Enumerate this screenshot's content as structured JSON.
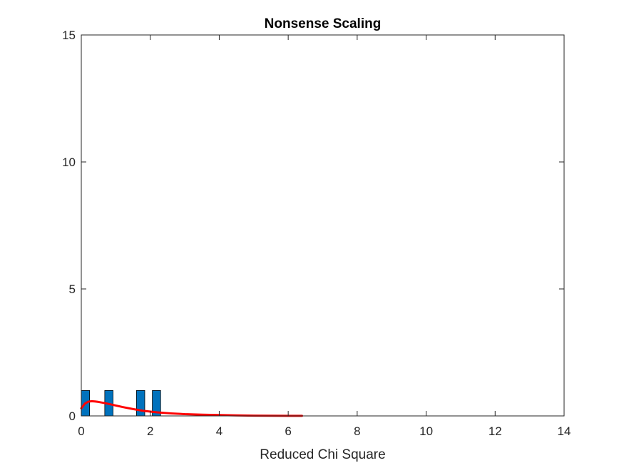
{
  "chart_data": {
    "type": "bar",
    "title": "Nonsense Scaling",
    "xlabel": "Reduced Chi Square",
    "ylabel": "",
    "xlim": [
      0,
      14
    ],
    "ylim": [
      0,
      15
    ],
    "xticks": [
      "0",
      "2",
      "4",
      "6",
      "8",
      "10",
      "12",
      "14"
    ],
    "yticks": [
      "0",
      "5",
      "10",
      "15"
    ],
    "grid": false,
    "bin_width": 0.24,
    "series": [
      {
        "type": "histogram",
        "color": "#0072BD",
        "bars": [
          {
            "x": 0.12,
            "value": 1
          },
          {
            "x": 0.8,
            "value": 1
          },
          {
            "x": 1.72,
            "value": 1
          },
          {
            "x": 2.18,
            "value": 1
          }
        ]
      },
      {
        "type": "line",
        "color": "#FF0000",
        "x": [
          0.0,
          0.1,
          0.2,
          0.3,
          0.4,
          0.5,
          0.7,
          0.9,
          1.2,
          1.5,
          1.8,
          2.2,
          2.6,
          3.0,
          3.5,
          4.0,
          4.5,
          5.0,
          5.5,
          6.0,
          6.4
        ],
        "y": [
          0.3,
          0.48,
          0.56,
          0.58,
          0.57,
          0.55,
          0.5,
          0.44,
          0.35,
          0.27,
          0.2,
          0.14,
          0.1,
          0.07,
          0.05,
          0.035,
          0.02,
          0.012,
          0.008,
          0.004,
          0.002
        ]
      }
    ]
  }
}
